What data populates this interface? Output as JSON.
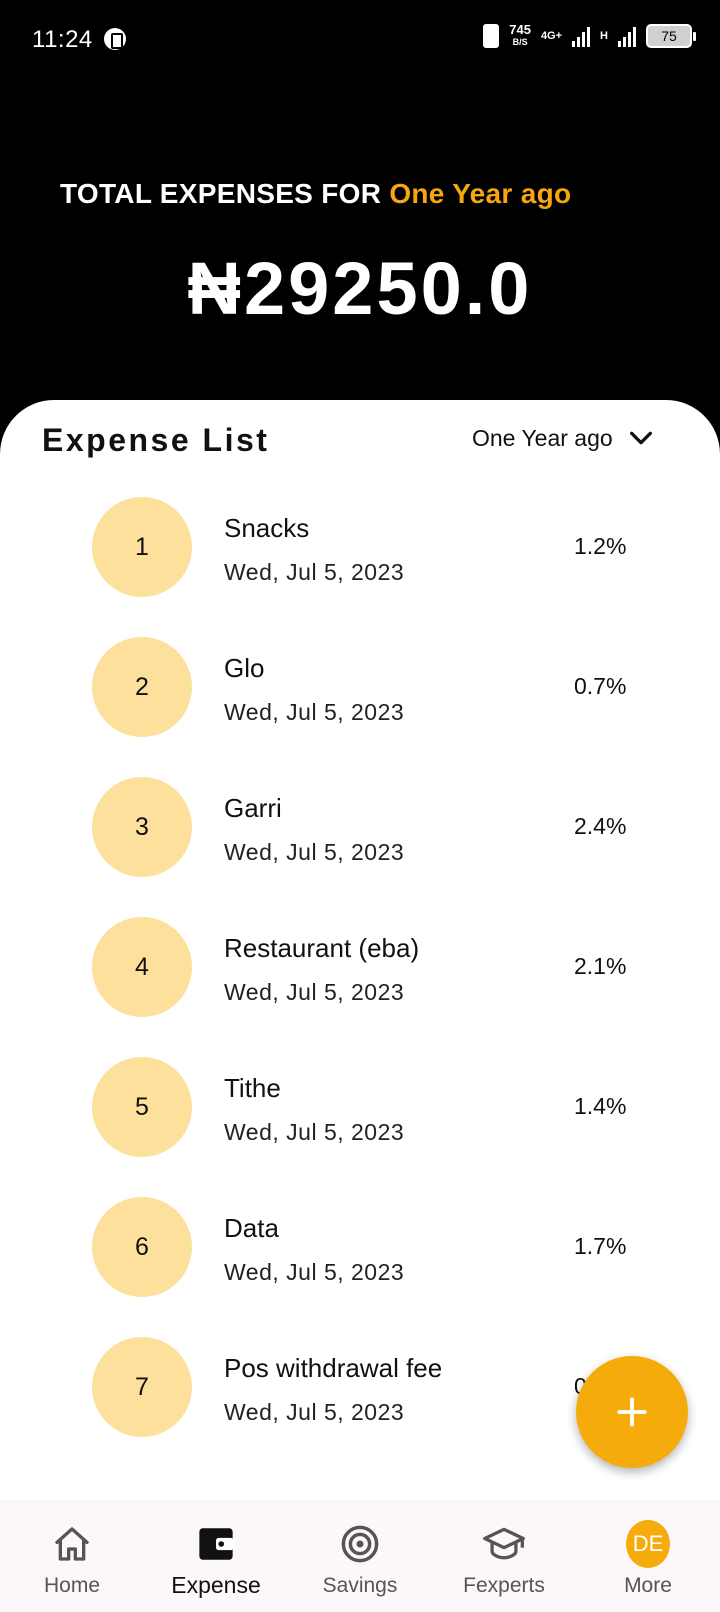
{
  "status_bar": {
    "time": "11:24",
    "speed_value": "745",
    "speed_unit": "B/S",
    "network": "4G+",
    "network2": "H",
    "battery": "75"
  },
  "header": {
    "title_prefix": "TOTAL EXPENSES FOR ",
    "title_period": "One Year ago",
    "total": "₦29250.0"
  },
  "list": {
    "title": "Expense List",
    "filter_value": "One Year ago",
    "items": [
      {
        "index": "1",
        "name": "Snacks",
        "date": "Wed, Jul 5, 2023",
        "percent": "1.2%"
      },
      {
        "index": "2",
        "name": "Glo",
        "date": "Wed, Jul 5, 2023",
        "percent": "0.7%"
      },
      {
        "index": "3",
        "name": "Garri",
        "date": "Wed, Jul 5, 2023",
        "percent": "2.4%"
      },
      {
        "index": "4",
        "name": "Restaurant (eba)",
        "date": "Wed, Jul 5, 2023",
        "percent": "2.1%"
      },
      {
        "index": "5",
        "name": "Tithe",
        "date": "Wed, Jul 5, 2023",
        "percent": "1.4%"
      },
      {
        "index": "6",
        "name": "Data",
        "date": "Wed, Jul 5, 2023",
        "percent": "1.7%"
      },
      {
        "index": "7",
        "name": "Pos withdrawal fee",
        "date": "Wed, Jul 5, 2023",
        "percent": "0"
      }
    ]
  },
  "nav": {
    "home": "Home",
    "expense": "Expense",
    "savings": "Savings",
    "fexperts": "Fexperts",
    "more": "More",
    "avatar_initials": "DE"
  },
  "colors": {
    "accent": "#f5a70d",
    "circle": "#fde09c",
    "background": "#000000"
  }
}
